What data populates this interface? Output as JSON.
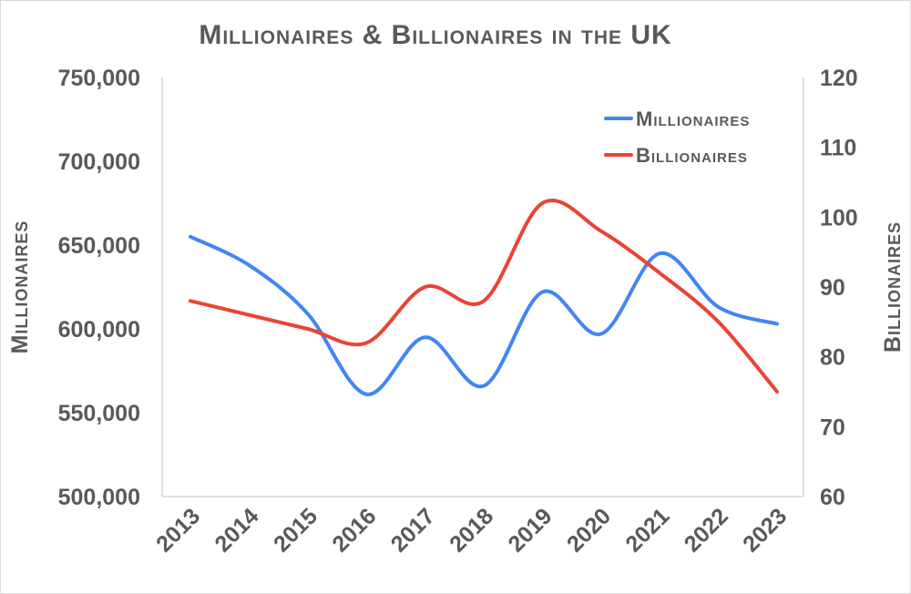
{
  "chart_data": {
    "type": "line",
    "title": "Millionaires & Billionaires in the UK",
    "x": [
      "2013",
      "2014",
      "2015",
      "2016",
      "2017",
      "2018",
      "2019",
      "2020",
      "2021",
      "2022",
      "2023"
    ],
    "series": [
      {
        "name": "Millionaires",
        "axis": "left",
        "color": "#4285f4",
        "values": [
          655000,
          638000,
          609000,
          561000,
          595000,
          566000,
          622000,
          597000,
          645000,
          613000,
          603000
        ]
      },
      {
        "name": "Billionaires",
        "axis": "right",
        "color": "#ea4335",
        "values": [
          88,
          86,
          84,
          82,
          90,
          88,
          102,
          98,
          92,
          85,
          75
        ]
      }
    ],
    "ylabel": "Millionaires",
    "y2label": "Billionaires",
    "ylim": [
      500000,
      750000
    ],
    "y2lim": [
      60,
      120
    ],
    "yticks": [
      "500,000",
      "550,000",
      "600,000",
      "650,000",
      "700,000",
      "750,000"
    ],
    "y2ticks": [
      "60",
      "70",
      "80",
      "90",
      "100",
      "110",
      "120"
    ],
    "grid": false,
    "smoothed": true,
    "legend": "top-right"
  }
}
